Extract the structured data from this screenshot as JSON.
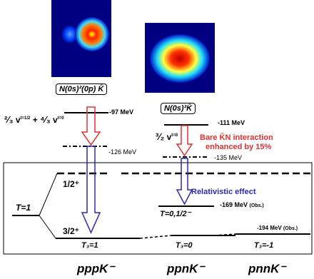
{
  "states": {
    "ppp_config": "N(0s)²(0p) K̄",
    "ppn_config": "N(0s)³K̄",
    "E_ppp": "-97 MeV",
    "E_ppp2": "-126 MeV",
    "E_ppn1": "-111 MeV",
    "E_ppn2": "-135 MeV",
    "E_obs1": "-169 MeV (Obs.)",
    "E_obs2": "-194 MeV (Obs.)",
    "E_obs1_val": "-169 MeV",
    "E_obs1_tag": "(Obs.)",
    "E_obs2_val": "-194 MeV",
    "E_obs2_tag": "(Obs.)"
  },
  "annotations": {
    "bare_line1": "Bare K̄N interaction",
    "bare_line2": "enhanced by 15%",
    "relativistic": "Relativistic effect"
  },
  "levels": {
    "half_plus": "1/2⁺",
    "three_half_plus": "3/2⁺",
    "T1": "T=1",
    "T01": "T=0,1/2⁻",
    "T3_1": "T₃=1",
    "T3_0": "T₃=0",
    "T3_m1": "T₃=-1"
  },
  "nuclei": [
    "pppK⁻",
    "ppnK⁻",
    "pnnK⁻"
  ],
  "colors": {
    "red_arrow": "#e03030",
    "blue_arrow": "#2b2bb0"
  }
}
